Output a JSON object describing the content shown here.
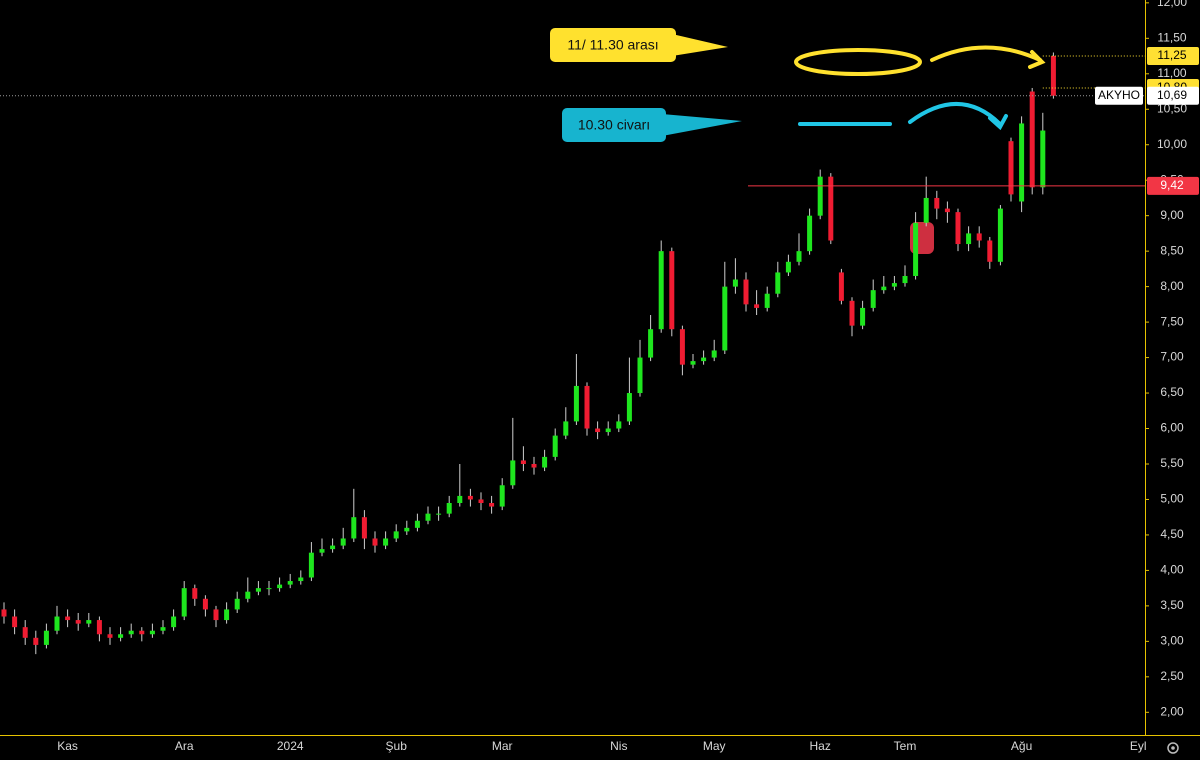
{
  "chart_data": {
    "type": "candlestick",
    "symbol": "AKYHO",
    "categories": [
      null,
      null,
      null,
      null,
      null,
      null,
      "Kas",
      null,
      null,
      null,
      null,
      null,
      null,
      null,
      null,
      null,
      null,
      "Ara",
      null,
      null,
      null,
      null,
      null,
      null,
      null,
      null,
      null,
      "2024",
      null,
      null,
      null,
      null,
      null,
      null,
      null,
      null,
      null,
      "Şub",
      null,
      null,
      null,
      null,
      null,
      null,
      null,
      null,
      null,
      "Mar",
      null,
      null,
      null,
      null,
      null,
      null,
      null,
      null,
      null,
      null,
      "Nis",
      null,
      null,
      null,
      null,
      null,
      null,
      null,
      null,
      "May",
      null,
      null,
      null,
      null,
      null,
      null,
      null,
      null,
      null,
      "Haz",
      null,
      null,
      null,
      null,
      null,
      null,
      null,
      "Tem",
      null,
      null,
      null,
      null,
      null,
      null,
      null,
      null,
      null,
      null,
      "Ağu",
      null,
      null,
      null,
      null,
      null,
      null,
      null,
      null,
      null,
      null,
      "Eyl"
    ],
    "open": [
      3.45,
      3.35,
      3.2,
      3.05,
      2.95,
      3.15,
      3.35,
      3.3,
      3.25,
      3.3,
      3.1,
      3.05,
      3.1,
      3.15,
      3.1,
      3.15,
      3.2,
      3.35,
      3.75,
      3.6,
      3.45,
      3.3,
      3.45,
      3.6,
      3.7,
      3.75,
      3.75,
      3.8,
      3.85,
      3.9,
      4.25,
      4.3,
      4.35,
      4.45,
      4.75,
      4.45,
      4.35,
      4.45,
      4.55,
      4.6,
      4.7,
      4.8,
      4.8,
      4.95,
      5.05,
      5.0,
      4.95,
      4.9,
      5.2,
      5.55,
      5.5,
      5.45,
      5.6,
      5.9,
      6.1,
      6.6,
      6.0,
      5.95,
      6.0,
      6.1,
      6.5,
      7.0,
      7.4,
      8.5,
      7.4,
      6.9,
      6.95,
      7.0,
      7.1,
      8.0,
      8.1,
      7.75,
      7.7,
      7.9,
      8.2,
      8.35,
      8.5,
      9.0,
      9.55,
      8.2,
      7.8,
      7.45,
      7.7,
      7.95,
      8.0,
      8.05,
      8.15,
      8.9,
      9.25,
      9.1,
      9.05,
      8.6,
      8.75,
      8.65,
      8.35,
      10.05,
      9.2,
      10.75,
      9.4,
      11.25,
      null,
      null,
      null,
      null,
      null,
      null,
      null,
      null
    ],
    "high": [
      3.55,
      3.45,
      3.3,
      3.15,
      3.25,
      3.5,
      3.45,
      3.4,
      3.4,
      3.35,
      3.2,
      3.2,
      3.25,
      3.2,
      3.25,
      3.3,
      3.45,
      3.85,
      3.8,
      3.65,
      3.5,
      3.55,
      3.7,
      3.9,
      3.85,
      3.85,
      3.9,
      3.95,
      4.0,
      4.4,
      4.45,
      4.45,
      4.6,
      5.15,
      4.85,
      4.55,
      4.55,
      4.65,
      4.7,
      4.8,
      4.9,
      4.9,
      5.05,
      5.5,
      5.15,
      5.1,
      5.05,
      5.3,
      6.15,
      5.75,
      5.6,
      5.7,
      6.0,
      6.3,
      7.05,
      6.65,
      6.1,
      6.1,
      6.2,
      7.0,
      7.25,
      7.6,
      8.65,
      8.55,
      7.45,
      7.05,
      7.1,
      7.25,
      8.35,
      8.4,
      8.2,
      7.95,
      8.0,
      8.35,
      8.45,
      8.75,
      9.1,
      9.65,
      9.6,
      8.25,
      7.85,
      7.8,
      8.1,
      8.15,
      8.15,
      8.3,
      9.05,
      9.55,
      9.35,
      9.2,
      9.1,
      8.85,
      8.85,
      8.7,
      9.15,
      10.1,
      10.4,
      10.8,
      10.45,
      11.3,
      null,
      null,
      null,
      null,
      null,
      null,
      null,
      null
    ],
    "low": [
      3.25,
      3.1,
      2.95,
      2.82,
      2.9,
      3.1,
      3.2,
      3.15,
      3.2,
      3.0,
      2.95,
      3.0,
      3.05,
      3.0,
      3.05,
      3.1,
      3.15,
      3.3,
      3.5,
      3.35,
      3.2,
      3.25,
      3.4,
      3.55,
      3.65,
      3.65,
      3.7,
      3.75,
      3.8,
      3.85,
      4.2,
      4.25,
      4.3,
      4.4,
      4.3,
      4.25,
      4.3,
      4.4,
      4.5,
      4.55,
      4.65,
      4.7,
      4.75,
      4.9,
      4.9,
      4.85,
      4.8,
      4.85,
      5.15,
      5.4,
      5.35,
      5.4,
      5.55,
      5.85,
      6.05,
      5.9,
      5.85,
      5.9,
      5.95,
      6.05,
      6.45,
      6.95,
      7.35,
      7.3,
      6.75,
      6.85,
      6.9,
      6.95,
      7.05,
      7.9,
      7.65,
      7.6,
      7.65,
      7.85,
      8.15,
      8.3,
      8.45,
      8.95,
      8.6,
      7.75,
      7.3,
      7.4,
      7.65,
      7.9,
      7.95,
      8.0,
      8.1,
      8.85,
      8.95,
      8.9,
      8.5,
      8.5,
      8.55,
      8.25,
      8.3,
      9.2,
      9.05,
      9.3,
      9.3,
      10.65,
      null,
      null,
      null,
      null,
      null,
      null,
      null,
      null
    ],
    "close": [
      3.35,
      3.2,
      3.05,
      2.95,
      3.15,
      3.35,
      3.3,
      3.25,
      3.3,
      3.1,
      3.05,
      3.1,
      3.15,
      3.1,
      3.15,
      3.2,
      3.35,
      3.75,
      3.6,
      3.45,
      3.3,
      3.45,
      3.6,
      3.7,
      3.75,
      3.75,
      3.8,
      3.85,
      3.9,
      4.25,
      4.3,
      4.35,
      4.45,
      4.75,
      4.45,
      4.35,
      4.45,
      4.55,
      4.6,
      4.7,
      4.8,
      4.8,
      4.95,
      5.05,
      5.0,
      4.95,
      4.9,
      5.2,
      5.55,
      5.5,
      5.45,
      5.6,
      5.9,
      6.1,
      6.6,
      6.0,
      5.95,
      6.0,
      6.1,
      6.5,
      7.0,
      7.4,
      8.5,
      7.4,
      6.9,
      6.95,
      7.0,
      7.1,
      8.0,
      8.1,
      7.75,
      7.7,
      7.9,
      8.2,
      8.35,
      8.5,
      9.0,
      9.55,
      8.65,
      7.8,
      7.45,
      7.7,
      7.95,
      8.0,
      8.05,
      8.15,
      8.9,
      9.25,
      9.1,
      9.05,
      8.6,
      8.75,
      8.65,
      8.35,
      9.1,
      9.3,
      10.3,
      9.4,
      10.2,
      10.69,
      null,
      null,
      null,
      null,
      null,
      null,
      null,
      null
    ],
    "up_color": "#1ee61e",
    "down_color": "#f01c32",
    "ylim": [
      1.68,
      12.04
    ],
    "yticks": [
      {
        "value": 2,
        "label": "2,00"
      },
      {
        "value": 2.5,
        "label": "2,50"
      },
      {
        "value": 3,
        "label": "3,00"
      },
      {
        "value": 3.5,
        "label": "3,50"
      },
      {
        "value": 4,
        "label": "4,00"
      },
      {
        "value": 4.5,
        "label": "4,50"
      },
      {
        "value": 5,
        "label": "5,00"
      },
      {
        "value": 5.5,
        "label": "5,50"
      },
      {
        "value": 6,
        "label": "6,00"
      },
      {
        "value": 6.5,
        "label": "6,50"
      },
      {
        "value": 7,
        "label": "7,00"
      },
      {
        "value": 7.5,
        "label": "7,50"
      },
      {
        "value": 8,
        "label": "8,00"
      },
      {
        "value": 8.5,
        "label": "8,50"
      },
      {
        "value": 9,
        "label": "9,00"
      },
      {
        "value": 9.5,
        "label": "9,50"
      },
      {
        "value": 10,
        "label": "10,00"
      },
      {
        "value": 10.5,
        "label": "10,50"
      },
      {
        "value": 11,
        "label": "11,00"
      },
      {
        "value": 11.5,
        "label": "11,50"
      },
      {
        "value": 12,
        "label": "12,00"
      }
    ],
    "levels": [
      {
        "value": 11.25,
        "label": "11,25",
        "color": "#ffe033",
        "style": "dotted"
      },
      {
        "value": 10.8,
        "label": "10,80",
        "color": "#ffe033",
        "style": "dotted"
      },
      {
        "value": 10.69,
        "label": "10,69",
        "color": "#ffffff",
        "style": "dotted"
      },
      {
        "value": 9.42,
        "label": "9,42",
        "color": "#f23645",
        "style": "solid"
      }
    ],
    "annotations": [
      {
        "text": "11/ 11.30 arası",
        "color": "#ffe12e"
      },
      {
        "text": "10.30 civarı",
        "color": "#17b4cf"
      }
    ]
  }
}
